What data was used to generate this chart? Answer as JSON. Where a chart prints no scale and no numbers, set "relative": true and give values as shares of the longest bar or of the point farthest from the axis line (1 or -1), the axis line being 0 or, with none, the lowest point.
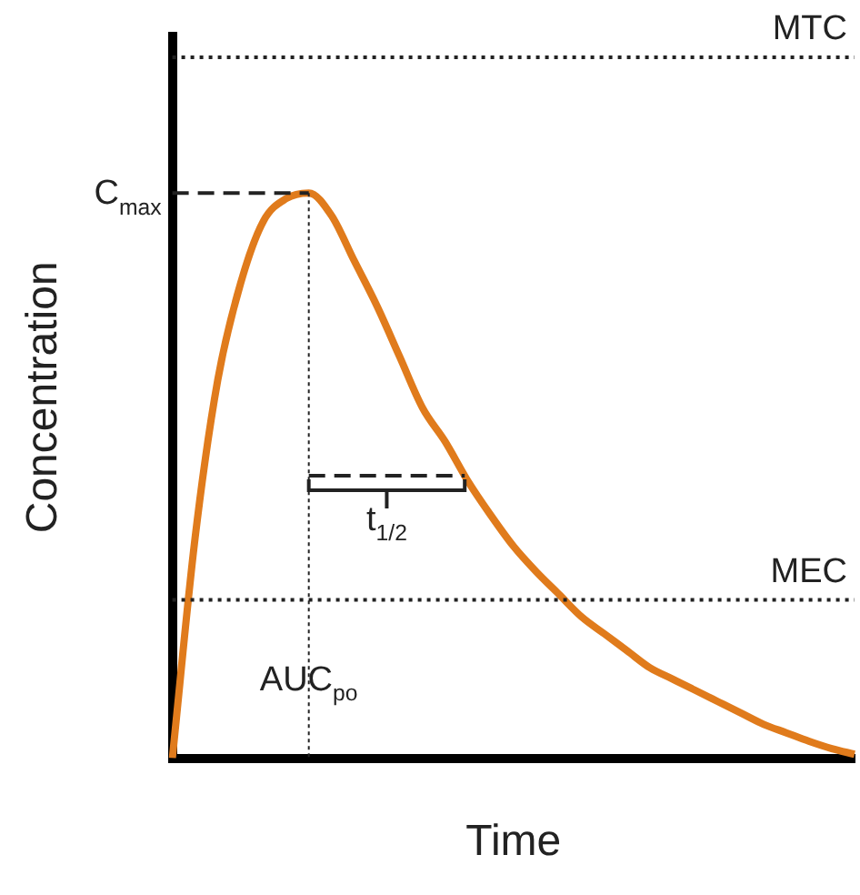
{
  "chart_data": {
    "type": "line",
    "relative": true,
    "xlabel": "Time",
    "ylabel": "Concentration",
    "categories": [
      null,
      null,
      null,
      null,
      null,
      null,
      null,
      null,
      null,
      null,
      null,
      null,
      null,
      null,
      null,
      null,
      null,
      null,
      null,
      null,
      null,
      null,
      null,
      null,
      null,
      null,
      null,
      null,
      null,
      null,
      null
    ],
    "series": [
      {
        "color": "#e07b1c",
        "values": [
          0,
          0.39,
          0.67,
          0.84,
          0.95,
          0.99,
          1,
          0.96,
          0.88,
          0.8,
          0.71,
          0.62,
          0.56,
          0.49,
          0.43,
          0.375,
          0.33,
          0.29,
          0.25,
          0.22,
          0.19,
          0.16,
          0.14,
          0.12,
          0.1,
          0.08,
          0.06,
          0.045,
          0.03,
          0.017,
          0.007
        ]
      }
    ],
    "ref_lines": [
      {
        "axis": "y",
        "value": 1.24,
        "label": "MTC",
        "line_style": "dotted"
      },
      {
        "axis": "y",
        "value": 0.28,
        "label": "MEC",
        "line_style": "dotted"
      },
      {
        "axis": "y",
        "value": 1,
        "label": "C$_{max}$",
        "line_style": "dashed"
      }
    ],
    "annotations": [
      "t$_{1/2}$",
      "AUC$_{po}$"
    ],
    "marker": "none",
    "line_style": "solid",
    "grid": false,
    "legend": false
  }
}
